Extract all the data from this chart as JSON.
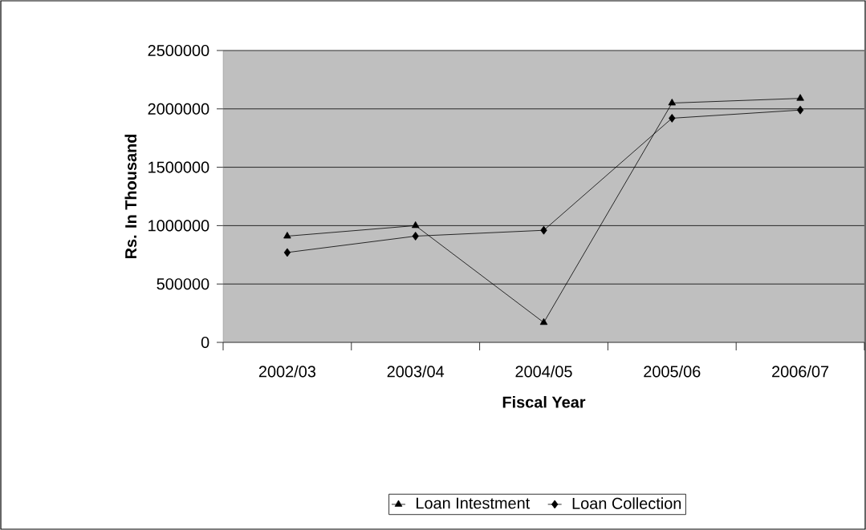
{
  "chart_data": {
    "type": "line",
    "xlabel": "Fiscal Year",
    "ylabel": "Rs. In Thousand",
    "categories": [
      "2002/03",
      "2003/04",
      "2004/05",
      "2005/06",
      "2006/07"
    ],
    "series": [
      {
        "name": "Loan Intestment",
        "color": "#000000",
        "marker": "triangle",
        "values": [
          910000,
          1000000,
          170000,
          2050000,
          2090000
        ]
      },
      {
        "name": "Loan Collection",
        "color": "#000000",
        "marker": "diamond",
        "values": [
          770000,
          910000,
          960000,
          1920000,
          1990000
        ]
      }
    ],
    "ylim": [
      0,
      2500000
    ],
    "yticks": [
      0,
      500000,
      1000000,
      1500000,
      2000000,
      2500000
    ],
    "grid": "y",
    "legend": "bottom",
    "line_style": "solid"
  }
}
